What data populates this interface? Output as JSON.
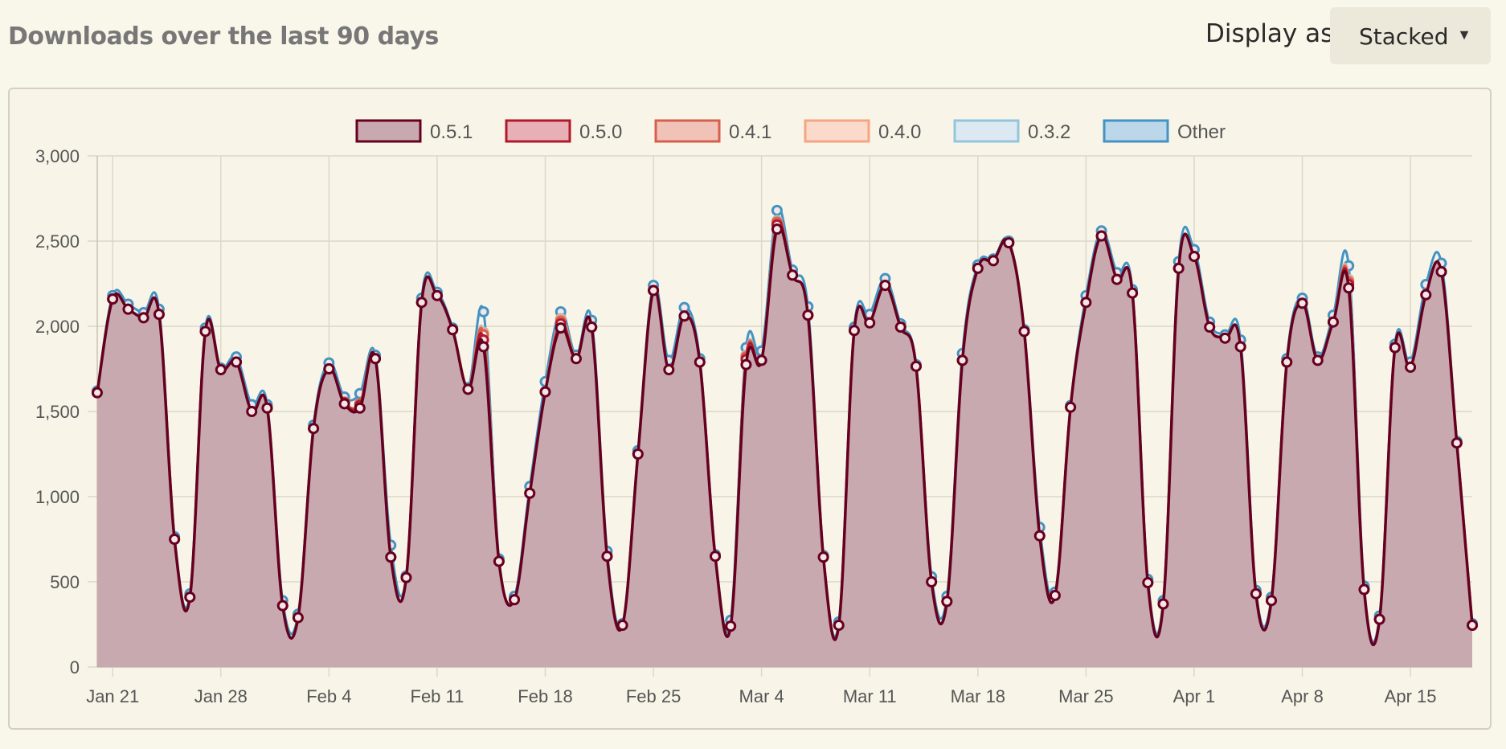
{
  "header": {
    "title": "Downloads over the last 90 days",
    "display_label": "Display as",
    "display_value": "Stacked",
    "caret": "▼"
  },
  "colors": {
    "0.5.1": "#67001f",
    "0.5.0": "#b2182b",
    "0.4.1": "#d6604d",
    "0.4.0": "#f4a582",
    "0.3.2": "#92c5de",
    "Other": "#4393c3"
  },
  "chart_data": {
    "type": "area",
    "stacked": true,
    "x": [
      "2017-01-20",
      "2017-01-21",
      "2017-01-22",
      "2017-01-23",
      "2017-01-24",
      "2017-01-25",
      "2017-01-26",
      "2017-01-27",
      "2017-01-28",
      "2017-01-29",
      "2017-01-30",
      "2017-01-31",
      "2017-02-01",
      "2017-02-02",
      "2017-02-03",
      "2017-02-04",
      "2017-02-05",
      "2017-02-06",
      "2017-02-07",
      "2017-02-08",
      "2017-02-09",
      "2017-02-10",
      "2017-02-11",
      "2017-02-12",
      "2017-02-13",
      "2017-02-14",
      "2017-02-15",
      "2017-02-16",
      "2017-02-17",
      "2017-02-18",
      "2017-02-19",
      "2017-02-20",
      "2017-02-21",
      "2017-02-22",
      "2017-02-23",
      "2017-02-24",
      "2017-02-25",
      "2017-02-26",
      "2017-02-27",
      "2017-02-28",
      "2017-03-01",
      "2017-03-02",
      "2017-03-03",
      "2017-03-04",
      "2017-03-05",
      "2017-03-06",
      "2017-03-07",
      "2017-03-08",
      "2017-03-09",
      "2017-03-10",
      "2017-03-11",
      "2017-03-12",
      "2017-03-13",
      "2017-03-14",
      "2017-03-15",
      "2017-03-16",
      "2017-03-17",
      "2017-03-18",
      "2017-03-19",
      "2017-03-20",
      "2017-03-21",
      "2017-03-22",
      "2017-03-23",
      "2017-03-24",
      "2017-03-25",
      "2017-03-26",
      "2017-03-27",
      "2017-03-28",
      "2017-03-29",
      "2017-03-30",
      "2017-03-31",
      "2017-04-01",
      "2017-04-02",
      "2017-04-03",
      "2017-04-04",
      "2017-04-05",
      "2017-04-06",
      "2017-04-07",
      "2017-04-08",
      "2017-04-09",
      "2017-04-10",
      "2017-04-11",
      "2017-04-12",
      "2017-04-13",
      "2017-04-14",
      "2017-04-15",
      "2017-04-16",
      "2017-04-17",
      "2017-04-18",
      "2017-04-19"
    ],
    "x_tick_labels": [
      "Jan 21",
      "Jan 28",
      "Feb 4",
      "Feb 11",
      "Feb 18",
      "Feb 25",
      "Mar 4",
      "Mar 11",
      "Mar 18",
      "Mar 25",
      "Apr 1",
      "Apr 8",
      "Apr 15"
    ],
    "y_ticks": [
      "0",
      "500",
      "1,000",
      "1,500",
      "2,000",
      "2,500",
      "3,000"
    ],
    "ylim": [
      0,
      3000
    ],
    "grid": true,
    "legend_position": "top",
    "series": [
      {
        "name": "0.5.1",
        "values": [
          1610,
          2160,
          2100,
          2050,
          2070,
          750,
          410,
          1970,
          1745,
          1790,
          1500,
          1520,
          360,
          290,
          1400,
          1750,
          1545,
          1520,
          1810,
          645,
          525,
          2140,
          2180,
          1980,
          1630,
          1880,
          620,
          395,
          1020,
          1615,
          1990,
          1810,
          1995,
          650,
          245,
          1250,
          2210,
          1745,
          2060,
          1790,
          650,
          240,
          1775,
          1800,
          2570,
          2300,
          2065,
          645,
          245,
          1975,
          2020,
          2240,
          1995,
          1765,
          500,
          385,
          1800,
          2340,
          2385,
          2490,
          1970,
          770,
          420,
          1525,
          2140,
          2530,
          2275,
          2195,
          495,
          370,
          2340,
          2410,
          1995,
          1930,
          1880,
          430,
          390,
          1790,
          2135,
          1800,
          2025,
          2225,
          455,
          280,
          1875,
          1760,
          2185,
          2320,
          1315,
          245
        ]
      },
      {
        "name": "0.5.0",
        "values": [
          0,
          0,
          0,
          0,
          0,
          0,
          0,
          0,
          0,
          0,
          0,
          0,
          0,
          0,
          0,
          0,
          5,
          15,
          0,
          0,
          0,
          0,
          0,
          0,
          0,
          40,
          0,
          0,
          0,
          0,
          25,
          0,
          0,
          0,
          0,
          0,
          0,
          0,
          0,
          0,
          0,
          0,
          30,
          0,
          25,
          0,
          0,
          0,
          0,
          0,
          0,
          0,
          0,
          0,
          0,
          0,
          0,
          0,
          0,
          0,
          0,
          0,
          0,
          0,
          0,
          0,
          0,
          0,
          0,
          0,
          0,
          0,
          0,
          0,
          0,
          0,
          0,
          0,
          0,
          0,
          0,
          20,
          0,
          0,
          0,
          0,
          0,
          0,
          0,
          0
        ]
      },
      {
        "name": "0.4.1",
        "values": [
          0,
          0,
          0,
          0,
          0,
          0,
          0,
          0,
          0,
          0,
          0,
          0,
          0,
          0,
          0,
          0,
          5,
          10,
          0,
          0,
          0,
          0,
          0,
          0,
          0,
          30,
          0,
          0,
          0,
          0,
          15,
          0,
          0,
          0,
          0,
          0,
          0,
          0,
          0,
          0,
          0,
          0,
          15,
          0,
          15,
          0,
          0,
          0,
          0,
          0,
          0,
          0,
          0,
          0,
          0,
          0,
          0,
          0,
          0,
          0,
          0,
          0,
          0,
          0,
          0,
          0,
          0,
          0,
          0,
          0,
          0,
          0,
          0,
          0,
          0,
          0,
          0,
          0,
          0,
          0,
          0,
          15,
          0,
          0,
          0,
          0,
          0,
          0,
          0,
          0
        ]
      },
      {
        "name": "0.4.0",
        "values": [
          0,
          0,
          0,
          0,
          0,
          0,
          0,
          0,
          0,
          0,
          0,
          0,
          0,
          0,
          0,
          0,
          0,
          0,
          0,
          0,
          0,
          0,
          0,
          0,
          0,
          10,
          0,
          0,
          0,
          0,
          10,
          0,
          0,
          0,
          0,
          0,
          0,
          0,
          0,
          0,
          0,
          0,
          5,
          0,
          5,
          0,
          0,
          0,
          0,
          0,
          0,
          0,
          0,
          0,
          0,
          0,
          0,
          0,
          0,
          0,
          0,
          0,
          0,
          0,
          0,
          0,
          0,
          0,
          0,
          0,
          0,
          0,
          0,
          0,
          0,
          0,
          0,
          0,
          0,
          0,
          0,
          10,
          0,
          0,
          0,
          0,
          0,
          0,
          0,
          0
        ]
      },
      {
        "name": "0.3.2",
        "values": [
          0,
          0,
          0,
          0,
          0,
          0,
          0,
          0,
          0,
          0,
          0,
          0,
          0,
          0,
          0,
          0,
          0,
          0,
          0,
          0,
          0,
          0,
          0,
          0,
          0,
          5,
          0,
          0,
          0,
          0,
          5,
          0,
          0,
          0,
          0,
          0,
          0,
          0,
          0,
          0,
          0,
          0,
          5,
          0,
          5,
          0,
          0,
          0,
          0,
          0,
          0,
          0,
          0,
          0,
          0,
          0,
          0,
          0,
          0,
          0,
          0,
          0,
          0,
          0,
          0,
          0,
          0,
          0,
          0,
          0,
          0,
          0,
          0,
          0,
          0,
          0,
          0,
          0,
          0,
          0,
          0,
          5,
          0,
          0,
          0,
          0,
          0,
          0,
          0,
          0
        ]
      },
      {
        "name": "Other",
        "values": [
          10,
          20,
          30,
          30,
          30,
          15,
          20,
          20,
          10,
          30,
          40,
          20,
          30,
          20,
          20,
          35,
          30,
          60,
          20,
          70,
          10,
          25,
          20,
          10,
          10,
          120,
          15,
          20,
          40,
          60,
          40,
          20,
          40,
          30,
          10,
          20,
          30,
          55,
          50,
          20,
          10,
          35,
          45,
          55,
          60,
          30,
          50,
          10,
          20,
          20,
          50,
          40,
          20,
          10,
          30,
          30,
          40,
          20,
          10,
          10,
          10,
          50,
          20,
          10,
          40,
          30,
          40,
          20,
          20,
          20,
          40,
          40,
          30,
          20,
          40,
          20,
          20,
          20,
          30,
          20,
          40,
          80,
          20,
          20,
          20,
          30,
          60,
          50,
          10,
          10
        ]
      }
    ]
  }
}
